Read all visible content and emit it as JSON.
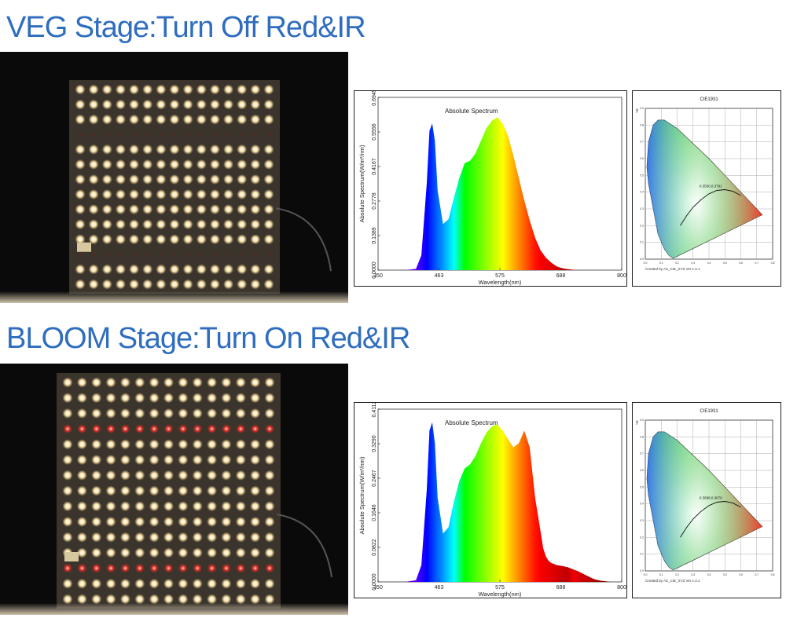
{
  "headings": {
    "veg": "VEG Stage:Turn Off Red&IR",
    "bloom": "BLOOM Stage:Turn On Red&IR"
  },
  "colors": {
    "heading": "#2f6dbf",
    "panel_bg": "#0b0a0a",
    "warm_led": "#ffe8b0",
    "red_led": "#e0332b"
  },
  "panels": [
    {
      "stage": "veg",
      "red_rows_on": false
    },
    {
      "stage": "bloom",
      "red_rows_on": true
    }
  ],
  "chart_data": [
    {
      "type": "area",
      "title": "Absolute Spectrum",
      "xlabel": "Wavelength(nm)",
      "ylabel": "Absolute Spectrum(W/m²/nm)",
      "x_ticks": [
        "350",
        "463",
        "575",
        "688",
        "800"
      ],
      "y_ticks": [
        "0.0000",
        "0.1389",
        "0.2778",
        "0.4167",
        "0.5556",
        "0.6945"
      ],
      "xlim": [
        350,
        800
      ],
      "ylim": [
        0,
        0.6945
      ],
      "x": [
        350,
        400,
        420,
        430,
        440,
        445,
        450,
        455,
        460,
        470,
        480,
        490,
        500,
        510,
        520,
        530,
        540,
        550,
        560,
        570,
        580,
        590,
        600,
        610,
        620,
        630,
        640,
        650,
        660,
        670,
        680,
        690,
        700,
        720,
        740,
        760,
        780,
        800
      ],
      "y": [
        0,
        0,
        0.005,
        0.06,
        0.35,
        0.56,
        0.59,
        0.52,
        0.32,
        0.185,
        0.205,
        0.29,
        0.37,
        0.43,
        0.44,
        0.47,
        0.52,
        0.57,
        0.6,
        0.615,
        0.59,
        0.54,
        0.46,
        0.37,
        0.28,
        0.2,
        0.13,
        0.08,
        0.05,
        0.03,
        0.015,
        0.008,
        0.004,
        0,
        0,
        0,
        0,
        0
      ]
    },
    {
      "type": "area",
      "title": "Absolute Spectrum",
      "xlabel": "Wavelength(nm)",
      "ylabel": "Absolute Spectrum(W/m²/nm)",
      "x_ticks": [
        "350",
        "463",
        "575",
        "688",
        "800"
      ],
      "y_ticks": [
        "0.0000",
        "0.0822",
        "0.1646",
        "0.2467",
        "0.3290",
        "0.4112"
      ],
      "xlim": [
        350,
        800
      ],
      "ylim": [
        0,
        0.4112
      ],
      "x": [
        350,
        400,
        420,
        430,
        440,
        445,
        450,
        455,
        460,
        470,
        480,
        490,
        500,
        510,
        520,
        530,
        540,
        550,
        560,
        570,
        580,
        590,
        600,
        610,
        620,
        630,
        640,
        650,
        655,
        660,
        665,
        670,
        680,
        690,
        700,
        720,
        740,
        750,
        760,
        780,
        800
      ],
      "y": [
        0,
        0,
        0.004,
        0.04,
        0.22,
        0.36,
        0.38,
        0.33,
        0.2,
        0.115,
        0.13,
        0.19,
        0.24,
        0.27,
        0.28,
        0.3,
        0.33,
        0.355,
        0.37,
        0.375,
        0.36,
        0.34,
        0.32,
        0.33,
        0.36,
        0.32,
        0.2,
        0.12,
        0.08,
        0.06,
        0.05,
        0.045,
        0.04,
        0.038,
        0.035,
        0.025,
        0.012,
        0.006,
        0.003,
        0,
        0
      ]
    }
  ],
  "cie": [
    {
      "title": "CIE1931",
      "y_axis_label": "y",
      "footer": "Created by AS_CIE_XYZ Ver 1.0.1",
      "point_label": "0.3530,0.3791"
    },
    {
      "title": "CIE1931",
      "y_axis_label": "y",
      "footer": "Created by AS_CIE_XYZ Ver 1.0.1",
      "point_label": "0.3698,0.3670"
    }
  ]
}
